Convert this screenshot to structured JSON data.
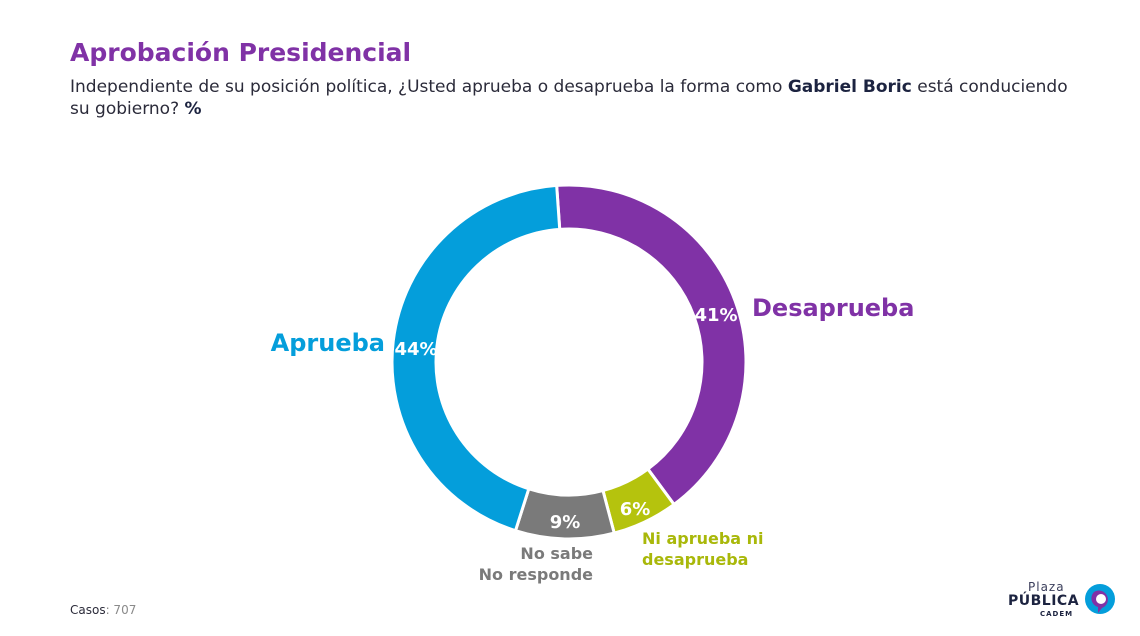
{
  "header": {
    "title": "Aprobación Presidencial",
    "subtitle_before": "Independiente de su posición política, ¿Usted aprueba o desaprueba la forma como ",
    "subtitle_bold": "Gabriel Boric",
    "subtitle_after": " está conduciendo su gobierno? ",
    "subtitle_unit": "%"
  },
  "footer": {
    "cases_label": "Casos",
    "cases_value": ": 707"
  },
  "logo": {
    "line1": "Plaza",
    "line2": "PÚBLICA",
    "line3": "CADEM"
  },
  "chart_data": {
    "type": "pie",
    "subtype": "donut",
    "title": "Aprobación Presidencial",
    "slices": [
      {
        "name": "Desaprueba",
        "label_lines": [
          "Desaprueba"
        ],
        "value": 41,
        "value_label": "41%",
        "color": "#8032a6",
        "label_color": "#8032a6"
      },
      {
        "name": "Ni aprueba ni desaprueba",
        "label_lines": [
          "Ni aprueba ni",
          "desaprueba"
        ],
        "value": 6,
        "value_label": "6%",
        "color": "#b5c30d",
        "label_color": "#a9b80a"
      },
      {
        "name": "No sabe No responde",
        "label_lines": [
          "No sabe",
          "No responde"
        ],
        "value": 9,
        "value_label": "9%",
        "color": "#7a7a7a",
        "label_color": "#7a7a7a"
      },
      {
        "name": "Aprueba",
        "label_lines": [
          "Aprueba"
        ],
        "value": 44,
        "value_label": "44%",
        "color": "#049edb",
        "label_color": "#049edb"
      }
    ]
  }
}
